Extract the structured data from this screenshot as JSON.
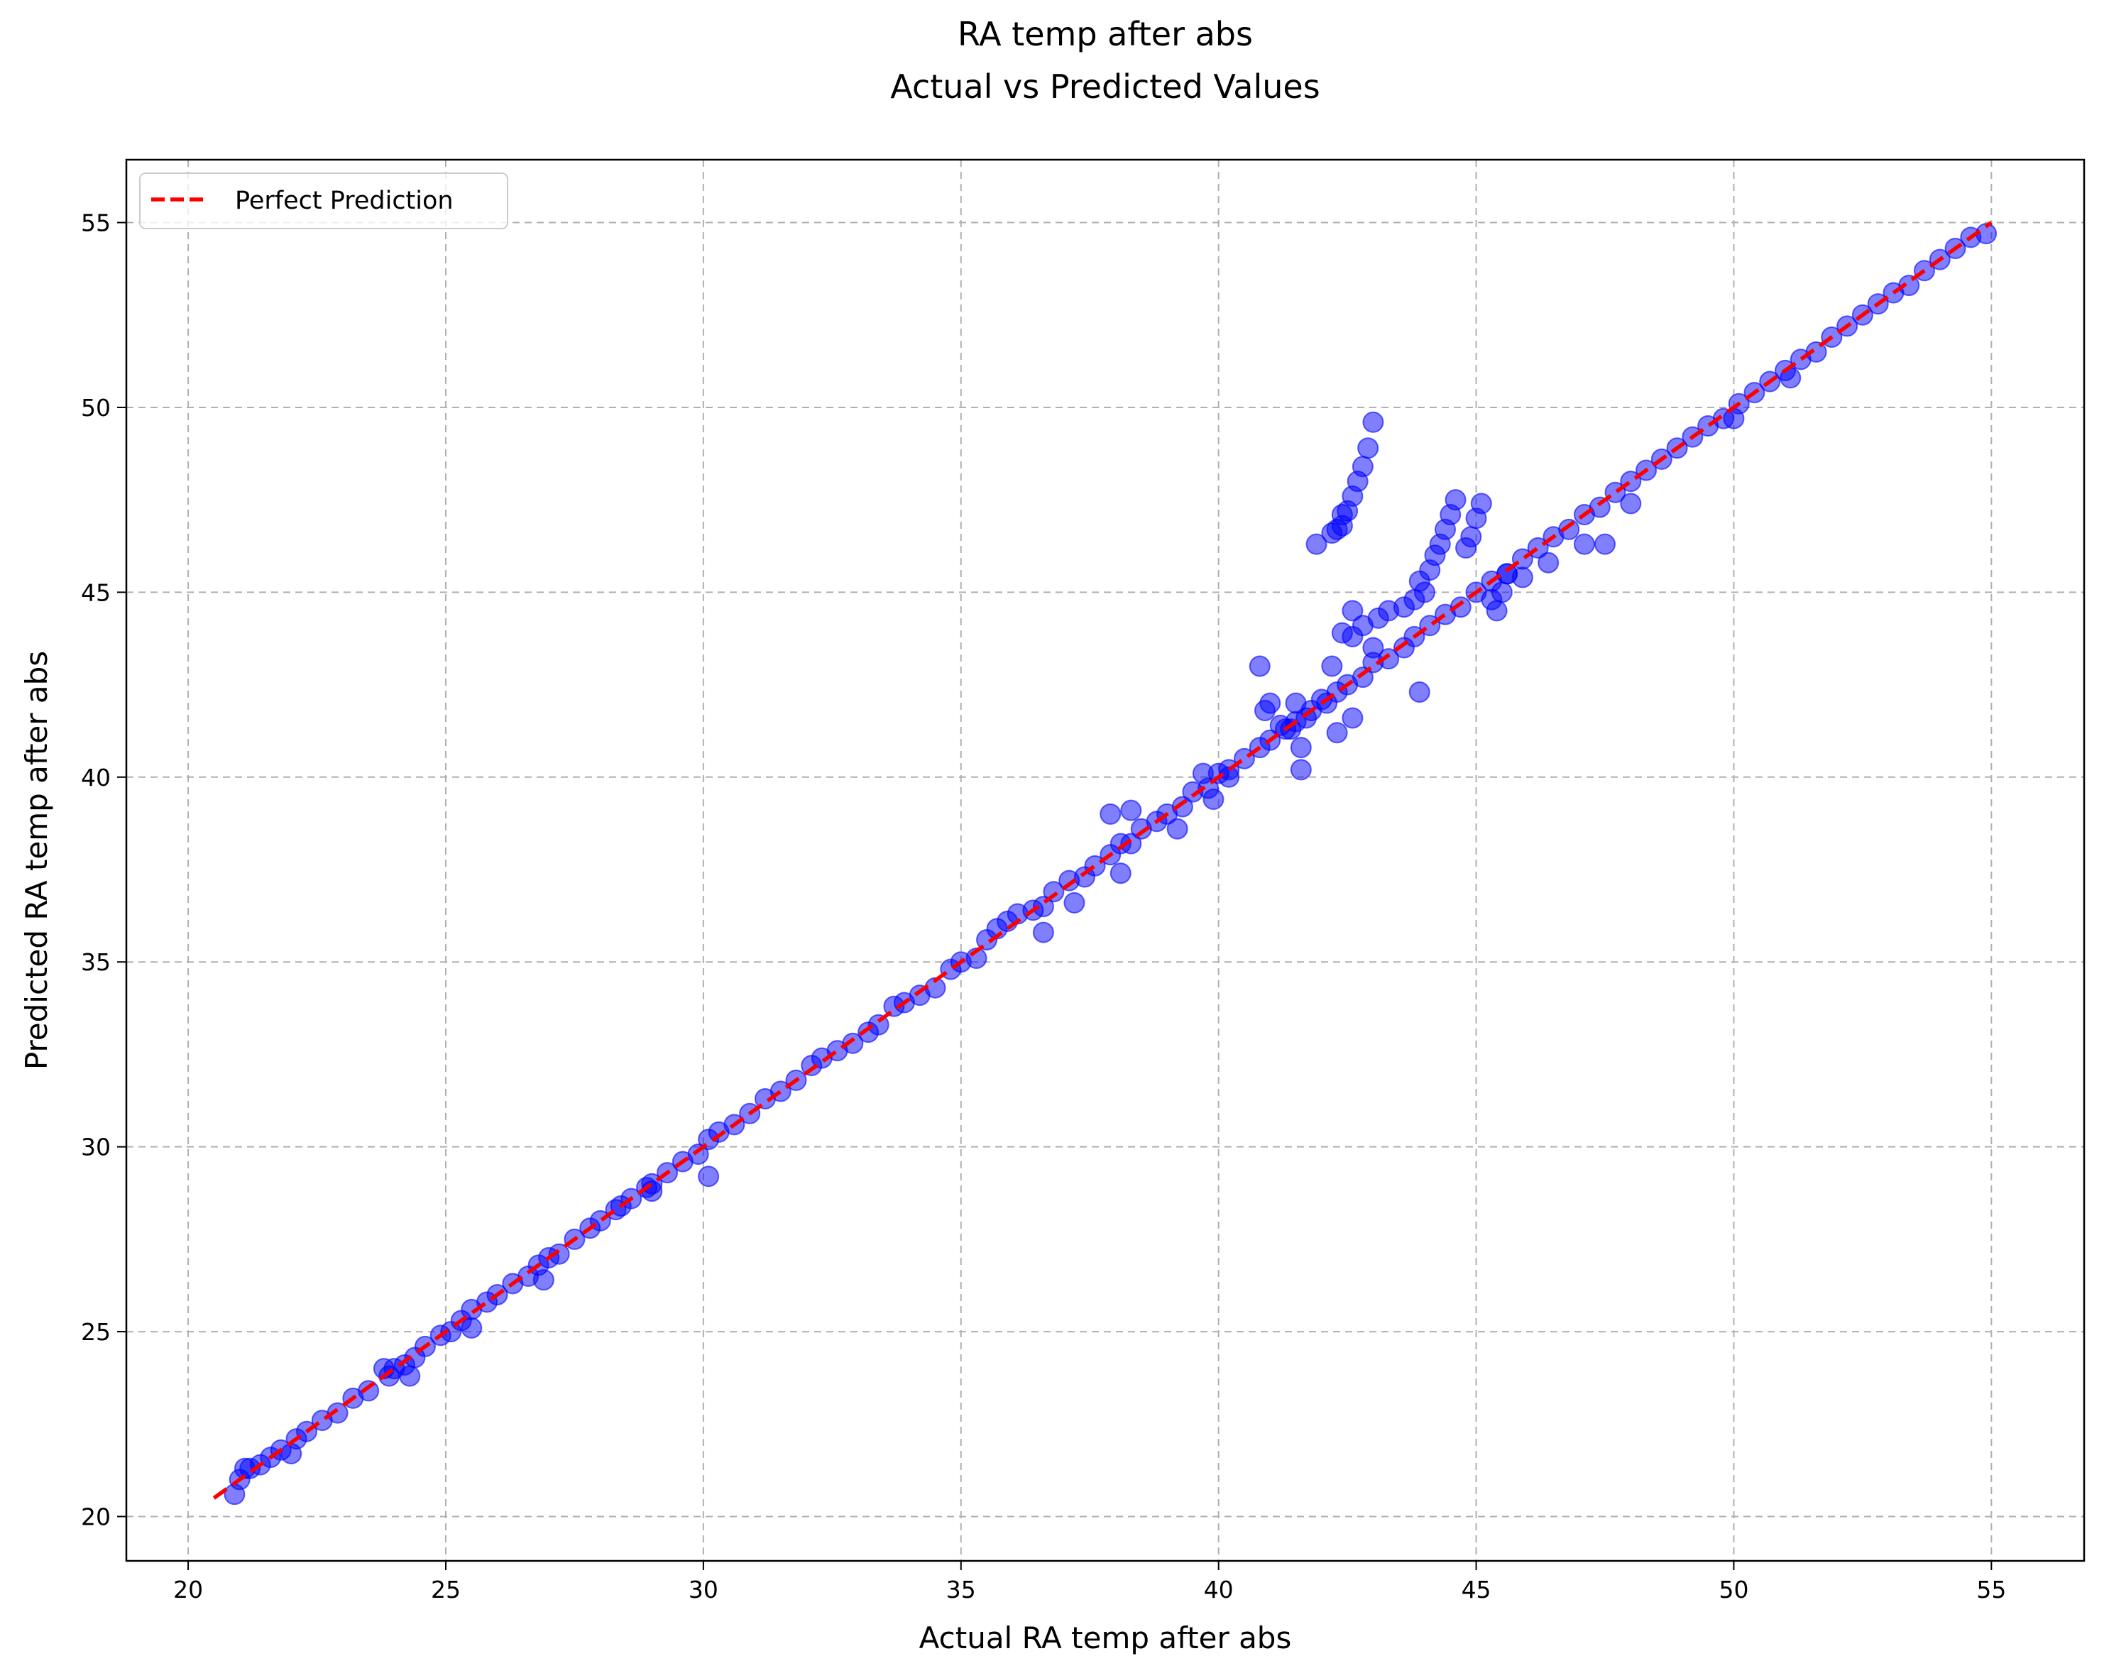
{
  "chart_data": {
    "type": "scatter",
    "title": "RA temp after abs",
    "subtitle": "Actual vs Predicted Values",
    "xlabel": "Actual RA temp after abs",
    "ylabel": "Predicted RA temp after abs",
    "xlim": [
      18.8,
      56.8
    ],
    "ylim": [
      18.8,
      56.7
    ],
    "x_ticks": [
      20,
      25,
      30,
      35,
      40,
      45,
      50,
      55
    ],
    "y_ticks": [
      20,
      25,
      30,
      35,
      40,
      45,
      50,
      55
    ],
    "grid": true,
    "legend": {
      "position": "top-left",
      "entries": [
        "Perfect Prediction"
      ]
    },
    "colors": {
      "points": "#0000ff",
      "reference_line": "#ff0000",
      "grid": "#b0b0b0"
    },
    "reference_line": {
      "name": "Perfect Prediction",
      "x": [
        20.5,
        55
      ],
      "y": [
        20.5,
        55
      ],
      "style": "dashed"
    },
    "series": [
      {
        "type": "scatter",
        "x": [
          20.9,
          21.0,
          21.1,
          21.2,
          21.4,
          21.6,
          21.8,
          22.0,
          22.1,
          22.3,
          22.6,
          22.9,
          23.2,
          23.5,
          23.8,
          23.9,
          24.0,
          24.2,
          24.4,
          24.6,
          24.9,
          25.1,
          25.3,
          25.5,
          25.8,
          26.0,
          26.3,
          26.6,
          26.8,
          27.0,
          27.2,
          27.5,
          27.8,
          28.0,
          28.3,
          28.6,
          28.9,
          29.0,
          29.3,
          29.6,
          29.9,
          30.1,
          30.3,
          30.6,
          30.9,
          31.2,
          31.5,
          31.8,
          32.1,
          32.3,
          32.6,
          32.9,
          33.2,
          33.4,
          33.7,
          33.9,
          34.2,
          34.5,
          34.8,
          35.0,
          35.3,
          35.5,
          35.7,
          35.9,
          36.1,
          36.4,
          36.6,
          36.8,
          37.1,
          37.4,
          37.6,
          37.9,
          38.1,
          38.3,
          38.5,
          38.8,
          39.0,
          39.3,
          39.5,
          39.8,
          40.0,
          40.2,
          40.5,
          40.8,
          41.0,
          41.3,
          41.5,
          41.8,
          42.0,
          42.3,
          42.5,
          42.8,
          43.0,
          43.3,
          43.6,
          43.8,
          44.1,
          44.4,
          44.7,
          45.0,
          45.3,
          45.6,
          45.9,
          46.2,
          46.5,
          46.8,
          47.1,
          47.4,
          47.7,
          48.0,
          48.3,
          48.6,
          48.9,
          49.2,
          49.5,
          49.8,
          50.1,
          50.4,
          50.7,
          51.0,
          51.3,
          51.6,
          51.9,
          52.2,
          52.5,
          52.8,
          53.1,
          53.4,
          53.7,
          54.0,
          54.3,
          54.6,
          54.9,
          30.1,
          29.0,
          28.4,
          26.9,
          25.5,
          24.3,
          36.6,
          37.2,
          38.1,
          39.2,
          39.9,
          41.6,
          42.6,
          37.9,
          38.3,
          39.7,
          40.2,
          40.9,
          41.5,
          41.2,
          41.6,
          42.3,
          45.3,
          46.4,
          47.1,
          45.9,
          47.5,
          48.0,
          50.0,
          51.1,
          43.9,
          42.6,
          42.8,
          42.1,
          41.7,
          41.4,
          41.0,
          40.8,
          42.4,
          42.5,
          42.6,
          42.7,
          42.8,
          42.9,
          43.0,
          42.3,
          41.9,
          42.2,
          42.4,
          43.9,
          44.1,
          44.2,
          44.3,
          44.4,
          44.5,
          44.6,
          44.8,
          44.9,
          45.0,
          45.1,
          44.0,
          43.8,
          43.6,
          43.3,
          43.1,
          45.4,
          45.5,
          45.6,
          42.2,
          42.4,
          42.6,
          43.0
        ],
        "y": [
          20.6,
          21.0,
          21.3,
          21.3,
          21.4,
          21.6,
          21.8,
          21.7,
          22.1,
          22.3,
          22.6,
          22.8,
          23.2,
          23.4,
          24.0,
          23.8,
          24.0,
          24.1,
          24.3,
          24.6,
          24.9,
          25.0,
          25.3,
          25.6,
          25.8,
          26.0,
          26.3,
          26.5,
          26.8,
          27.0,
          27.1,
          27.5,
          27.8,
          28.0,
          28.3,
          28.6,
          28.9,
          29.0,
          29.3,
          29.6,
          29.8,
          30.2,
          30.4,
          30.6,
          30.9,
          31.3,
          31.5,
          31.8,
          32.2,
          32.4,
          32.6,
          32.8,
          33.1,
          33.3,
          33.8,
          33.9,
          34.1,
          34.3,
          34.8,
          35.0,
          35.1,
          35.6,
          35.9,
          36.1,
          36.3,
          36.4,
          36.5,
          36.9,
          37.2,
          37.3,
          37.6,
          37.9,
          38.2,
          38.2,
          38.6,
          38.8,
          39.0,
          39.2,
          39.6,
          39.7,
          40.1,
          40.2,
          40.5,
          40.8,
          41.0,
          41.3,
          41.5,
          41.8,
          42.1,
          42.3,
          42.5,
          42.7,
          43.1,
          43.2,
          43.5,
          43.8,
          44.1,
          44.4,
          44.6,
          45.0,
          45.3,
          45.5,
          45.9,
          46.2,
          46.5,
          46.7,
          47.1,
          47.3,
          47.7,
          48.0,
          48.3,
          48.6,
          48.9,
          49.2,
          49.5,
          49.7,
          50.1,
          50.4,
          50.7,
          51.0,
          51.3,
          51.5,
          51.9,
          52.2,
          52.5,
          52.8,
          53.1,
          53.3,
          53.7,
          54.0,
          54.3,
          54.6,
          54.7,
          29.2,
          28.8,
          28.4,
          26.4,
          25.1,
          23.8,
          35.8,
          36.6,
          37.4,
          38.6,
          39.4,
          40.8,
          41.6,
          39.0,
          39.1,
          40.1,
          40.0,
          41.8,
          42.0,
          41.4,
          40.2,
          41.2,
          44.8,
          45.8,
          46.3,
          45.4,
          46.3,
          47.4,
          49.7,
          50.8,
          42.3,
          44.5,
          44.1,
          42.0,
          41.6,
          41.3,
          42.0,
          43.0,
          46.8,
          47.2,
          47.6,
          48.0,
          48.4,
          48.9,
          49.6,
          46.7,
          46.3,
          46.6,
          47.1,
          45.3,
          45.6,
          46.0,
          46.3,
          46.7,
          47.1,
          47.5,
          46.2,
          46.5,
          47.0,
          47.4,
          45.0,
          44.8,
          44.6,
          44.5,
          44.3,
          44.5,
          45.0,
          45.5,
          43.0,
          43.9,
          43.8,
          43.5
        ]
      }
    ]
  }
}
